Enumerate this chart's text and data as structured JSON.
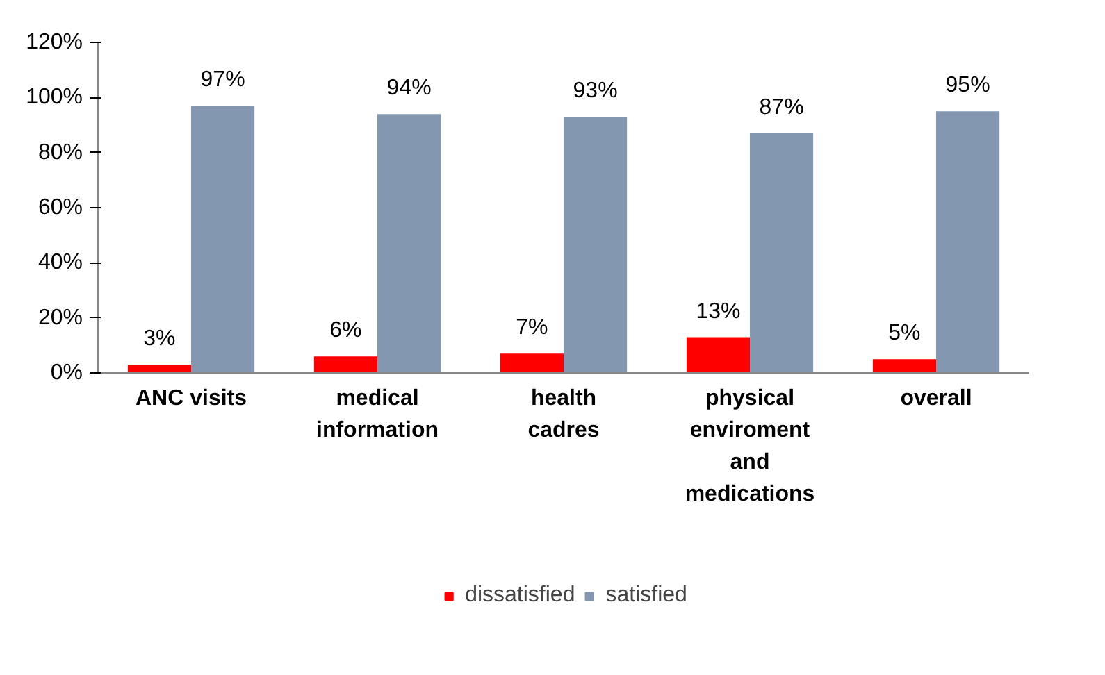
{
  "chart_data": {
    "type": "bar",
    "categories": [
      "ANC visits",
      "medical information",
      "health cadres",
      "physical enviroment and medications",
      "overall"
    ],
    "series": [
      {
        "name": "dissatisfied",
        "color": "#ff0000",
        "values": [
          3,
          6,
          7,
          13,
          5
        ],
        "value_labels": [
          "3%",
          "6%",
          "7%",
          "13%",
          "5%"
        ]
      },
      {
        "name": "satisfied",
        "color": "#8497b0",
        "values": [
          97,
          94,
          93,
          87,
          95
        ],
        "value_labels": [
          "97%",
          "94%",
          "93%",
          "87%",
          "95%"
        ]
      }
    ],
    "ylim": [
      0,
      120
    ],
    "yticks": [
      {
        "value": 0,
        "label": "0%"
      },
      {
        "value": 20,
        "label": "20%"
      },
      {
        "value": 40,
        "label": "40%"
      },
      {
        "value": 60,
        "label": "60%"
      },
      {
        "value": 80,
        "label": "80%"
      },
      {
        "value": 100,
        "label": "100%"
      },
      {
        "value": 120,
        "label": "120%"
      }
    ],
    "grid": false,
    "legend": "bottom"
  }
}
